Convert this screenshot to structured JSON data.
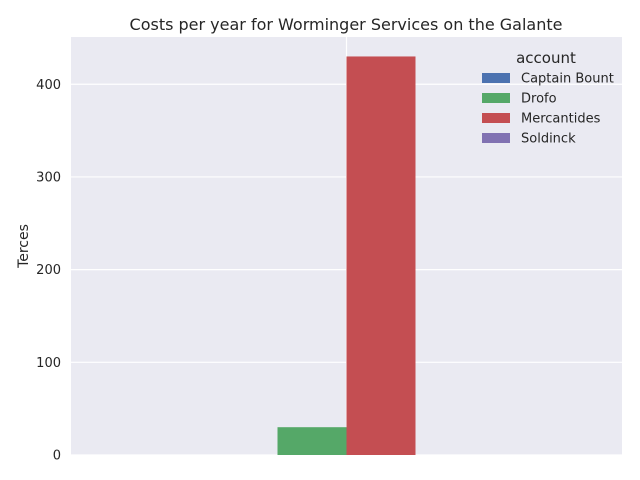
{
  "chart_data": {
    "type": "bar",
    "title": "Costs per year for Worminger Services on the Galante",
    "xlabel": "",
    "ylabel": "Terces",
    "ylim": [
      0,
      451
    ],
    "yticks": [
      0,
      100,
      200,
      300,
      400
    ],
    "grid": true,
    "legend": {
      "title": "account",
      "placement": "top-right"
    },
    "categories": [
      ""
    ],
    "series": [
      {
        "name": "Captain Bount",
        "color": "#4c72b0",
        "values": [
          0
        ]
      },
      {
        "name": "Drofo",
        "color": "#55a868",
        "values": [
          30
        ]
      },
      {
        "name": "Mercantides",
        "color": "#c44e52",
        "values": [
          430
        ]
      },
      {
        "name": "Soldinck",
        "color": "#8172b2",
        "values": [
          0
        ]
      }
    ]
  }
}
